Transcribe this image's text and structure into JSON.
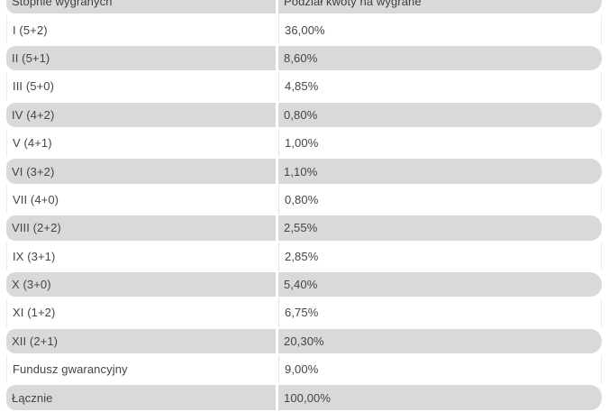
{
  "table": {
    "title": "Podział kwoty na wygrane",
    "columns": [
      "Stopnie wygranych",
      "Podział kwoty na wygrane"
    ],
    "rows": [
      {
        "tier": "I (5+2)",
        "share": "36,00%"
      },
      {
        "tier": "II (5+1)",
        "share": "8,60%"
      },
      {
        "tier": "III (5+0)",
        "share": "4,85%"
      },
      {
        "tier": "IV (4+2)",
        "share": "0,80%"
      },
      {
        "tier": "V (4+1)",
        "share": "1,00%"
      },
      {
        "tier": "VI (3+2)",
        "share": "1,10%"
      },
      {
        "tier": "VII (4+0)",
        "share": "0,80%"
      },
      {
        "tier": "VIII (2+2)",
        "share": "2,55%"
      },
      {
        "tier": "IX (3+1)",
        "share": "2,85%"
      },
      {
        "tier": "X (3+0)",
        "share": "5,40%"
      },
      {
        "tier": "XI (1+2)",
        "share": "6,75%"
      },
      {
        "tier": "XII (2+1)",
        "share": "20,30%"
      },
      {
        "tier": "Fundusz gwarancyjny",
        "share": "9,00%"
      },
      {
        "tier": "Łącznie",
        "share": "100,00%"
      }
    ]
  },
  "colors": {
    "row_alt_background": "#d9d9d9",
    "text": "#454545",
    "page_background": "#ffffff"
  }
}
